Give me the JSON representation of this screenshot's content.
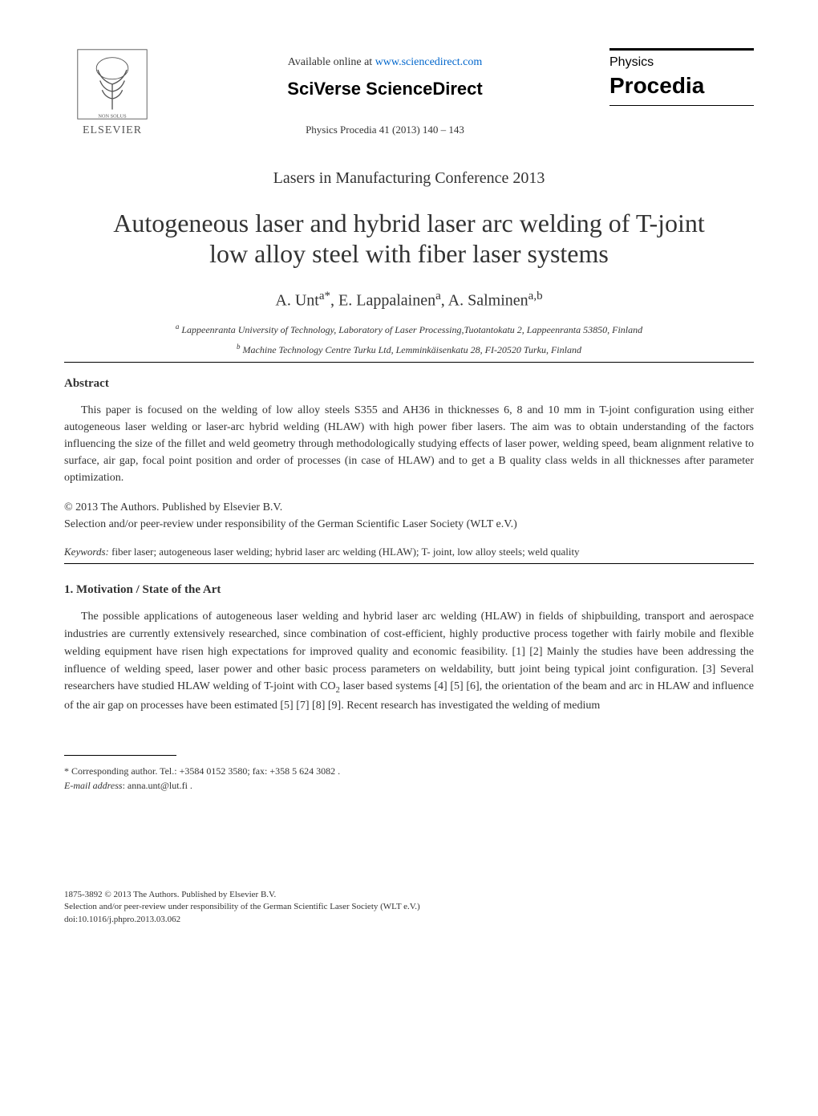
{
  "header": {
    "publisher_name": "ELSEVIER",
    "available_text": "Available online at ",
    "available_url": "www.sciencedirect.com",
    "platform": "SciVerse ScienceDirect",
    "journal_ref": "Physics Procedia 41 (2013) 140 – 143",
    "journal_brand_line1": "Physics",
    "journal_brand_line2": "Procedia"
  },
  "conference": "Lasers in Manufacturing Conference 2013",
  "title": "Autogeneous laser and hybrid laser arc welding of T-joint low alloy steel with fiber laser systems",
  "authors_html": "A. Unt<sup>a*</sup>, E. Lappalainen<sup>a</sup>, A. Salminen<sup>a,b</sup>",
  "affiliations": {
    "a": "Lappeenranta University of Technology, Laboratory of  Laser Processing,Tuotantokatu 2, Lappeenranta 53850, Finland",
    "b": "Machine Technology Centre Turku Ltd, Lemminkäisenkatu 28, FI-20520 Turku, Finland"
  },
  "abstract": {
    "heading": "Abstract",
    "text": "This paper is focused on the welding of low alloy steels S355 and AH36 in thicknesses 6, 8 and 10 mm in T-joint configuration using either autogeneous laser welding or laser-arc hybrid welding (HLAW) with high power fiber lasers. The aim was to obtain understanding of the factors influencing the size of the fillet and weld geometry through methodologically studying effects of laser power, welding speed, beam alignment relative to surface, air gap, focal point position and order of processes (in case of HLAW) and to get a B quality class welds in all thicknesses after parameter optimization."
  },
  "copyright": {
    "line1": "© 2013 The Authors. Published by Elsevier B.V.",
    "line2": "Selection and/or peer-review under responsibility of the German Scientific Laser Society (WLT e.V.)"
  },
  "keywords": {
    "label": "Keywords:",
    "text": " fiber laser; autogeneous laser welding; hybrid laser arc welding (HLAW); T- joint, low alloy steels; weld quality"
  },
  "section1": {
    "heading": "1. Motivation / State of the Art",
    "body_html": "The possible applications of autogeneous laser welding and hybrid laser arc welding (HLAW) in fields of shipbuilding, transport and aerospace industries are currently extensively researched, since combination of cost-efficient, highly productive process together with fairly mobile and flexible welding equipment have risen high expectations for improved quality and economic feasibility. [1]  [2] Mainly the studies have been addressing the influence of welding speed, laser power and other basic process parameters on weldability, butt joint being typical joint configuration. [3] Several researchers have studied HLAW welding of T-joint with CO<sub>2</sub> laser based systems [4] [5] [6], the orientation of the beam and arc in HLAW and influence of the air gap on processes have been estimated [5] [7] [8] [9]. Recent research has investigated the welding of medium"
  },
  "footnote": {
    "corresponding": "* Corresponding author. Tel.: +3584 0152 3580; fax: +358 5 624 3082 .",
    "email_label": "E-mail address",
    "email": ": anna.unt@lut.fi ."
  },
  "footer": {
    "line1": "1875-3892 © 2013 The Authors. Published by Elsevier B.V.",
    "line2": "Selection and/or peer-review under responsibility of the German Scientific Laser Society (WLT e.V.)",
    "line3": "doi:10.1016/j.phpro.2013.03.062"
  },
  "colors": {
    "text": "#333333",
    "link": "#0066cc",
    "background": "#ffffff",
    "rule": "#000000"
  }
}
